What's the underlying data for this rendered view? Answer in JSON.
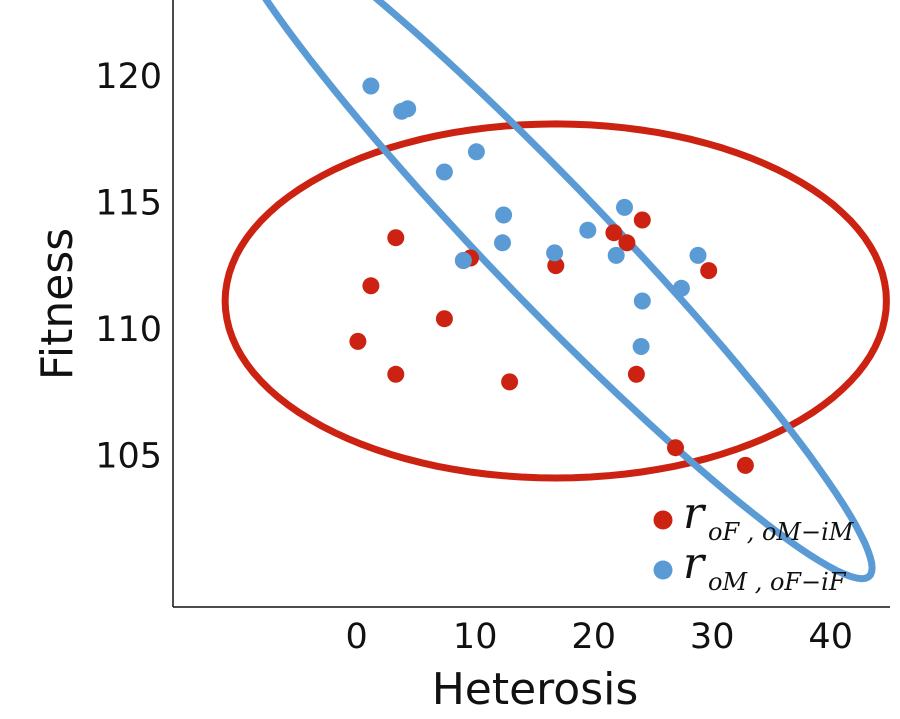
{
  "chart_data": {
    "type": "scatter",
    "title": "",
    "xlabel": "Heterosis",
    "ylabel": "Fitness",
    "xlim": [
      -15.5,
      45
    ],
    "ylim": [
      99,
      123
    ],
    "xticks": [
      0,
      10,
      20,
      30,
      40
    ],
    "yticks": [
      105,
      110,
      115,
      120
    ],
    "grid": false,
    "legend_position": "bottom-right",
    "series": [
      {
        "name": "r_{oF , oM−iM}",
        "legend_main": "r",
        "legend_subscript": "oF , oM−iM",
        "color": "#cc2211",
        "points": [
          [
            0.1,
            109.5
          ],
          [
            1.2,
            111.7
          ],
          [
            3.3,
            113.6
          ],
          [
            3.3,
            108.2
          ],
          [
            7.4,
            110.4
          ],
          [
            9.0,
            112.7
          ],
          [
            9.6,
            112.8
          ],
          [
            12.9,
            107.9
          ],
          [
            16.8,
            112.5
          ],
          [
            21.7,
            113.8
          ],
          [
            22.8,
            113.4
          ],
          [
            24.1,
            114.3
          ],
          [
            23.6,
            108.2
          ],
          [
            26.9,
            105.3
          ],
          [
            29.7,
            112.3
          ],
          [
            32.8,
            104.6
          ]
        ],
        "ellipse": {
          "center": [
            16.8,
            111.1
          ],
          "semi_axes": [
            27.9,
            7.0
          ],
          "rotation_deg": 0
        }
      },
      {
        "name": "r_{oM , oF−iF}",
        "legend_main": "r",
        "legend_subscript": "oM , oF−iF",
        "color": "#5b9bd5",
        "points": [
          [
            1.2,
            119.6
          ],
          [
            3.8,
            118.6
          ],
          [
            4.3,
            118.7
          ],
          [
            7.4,
            116.2
          ],
          [
            10.1,
            117.0
          ],
          [
            9.0,
            112.7
          ],
          [
            12.4,
            114.5
          ],
          [
            12.3,
            113.4
          ],
          [
            16.7,
            113.0
          ],
          [
            19.5,
            113.9
          ],
          [
            21.9,
            112.9
          ],
          [
            22.6,
            114.8
          ],
          [
            24.1,
            111.1
          ],
          [
            24.0,
            109.3
          ],
          [
            27.4,
            111.6
          ],
          [
            28.8,
            112.9
          ]
        ],
        "ellipse": {
          "center": [
            16.2,
            113.4
          ],
          "semi_axes": [
            30.2,
            3.0
          ],
          "rotation_deg": -25.5
        }
      }
    ]
  }
}
